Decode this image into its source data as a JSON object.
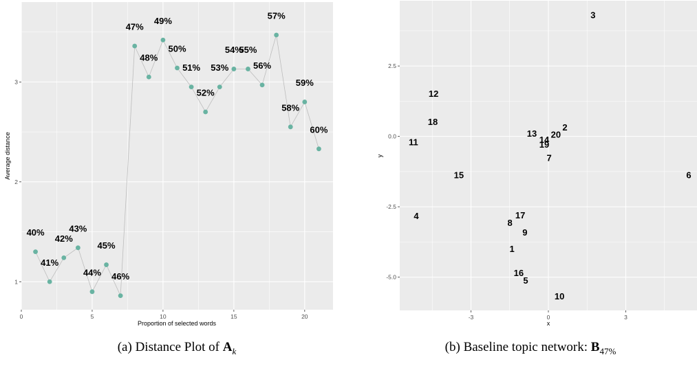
{
  "figure": {
    "caption_a": {
      "prefix": "(a) Distance Plot of ",
      "symbol": "A",
      "subscript": "k"
    },
    "caption_b": {
      "prefix": "(b) Baseline topic network: ",
      "symbol": "B",
      "subscript": "47%"
    }
  },
  "chart_data": [
    {
      "type": "line",
      "xlabel": "Proportion of selected words",
      "ylabel": "Average distance",
      "xlim": [
        0,
        22
      ],
      "ylim": [
        0.72,
        3.8
      ],
      "x_ticks": [
        0,
        5,
        10,
        15,
        20
      ],
      "x_tick_labels": [
        "0",
        "5",
        "10",
        "15",
        "20"
      ],
      "y_ticks": [
        1,
        2,
        3
      ],
      "y_tick_labels": [
        "1",
        "2",
        "3"
      ],
      "grid": true,
      "panel_color": "#EBEBEB",
      "marker_color": "#69B3A2",
      "line_color": "#BDBDBD",
      "x": [
        1,
        2,
        3,
        4,
        5,
        6,
        7,
        8,
        9,
        10,
        11,
        12,
        13,
        14,
        15,
        16,
        17,
        18,
        19,
        20,
        21
      ],
      "y": [
        1.3,
        1.0,
        1.24,
        1.34,
        0.9,
        1.17,
        0.86,
        3.36,
        3.05,
        3.42,
        3.14,
        2.95,
        2.7,
        2.95,
        3.13,
        3.13,
        2.97,
        3.47,
        2.55,
        2.8,
        2.33
      ],
      "point_labels": [
        "40%",
        "41%",
        "42%",
        "43%",
        "44%",
        "45%",
        "46%",
        "47%",
        "48%",
        "49%",
        "50%",
        "51%",
        "52%",
        "53%",
        "54%",
        "55%",
        "56%",
        "57%",
        "58%",
        "59%",
        "60%"
      ]
    },
    {
      "type": "scatter",
      "xlabel": "x",
      "ylabel": "y",
      "xlim": [
        -5.76,
        5.76
      ],
      "ylim": [
        -6.18,
        4.82
      ],
      "x_ticks": [
        -3,
        0,
        3
      ],
      "x_tick_labels": [
        "-3",
        "0",
        "3"
      ],
      "y_ticks": [
        2.5,
        0,
        -2.5,
        -5
      ],
      "y_tick_labels": [
        "2.5",
        "0.0",
        "-2.5",
        "-5.0"
      ],
      "grid": true,
      "panel_color": "#EBEBEB",
      "points": [
        {
          "label": "1",
          "x": -1.41,
          "y": -4.0
        },
        {
          "label": "2",
          "x": 0.64,
          "y": 0.32
        },
        {
          "label": "3",
          "x": 1.73,
          "y": 4.31
        },
        {
          "label": "4",
          "x": -5.12,
          "y": -2.83
        },
        {
          "label": "5",
          "x": -0.88,
          "y": -5.12
        },
        {
          "label": "6",
          "x": 5.44,
          "y": -1.37
        },
        {
          "label": "7",
          "x": 0.03,
          "y": -0.76
        },
        {
          "label": "8",
          "x": -1.49,
          "y": -3.07
        },
        {
          "label": "9",
          "x": -0.91,
          "y": -3.41
        },
        {
          "label": "10",
          "x": 0.43,
          "y": -5.68
        },
        {
          "label": "11",
          "x": -5.23,
          "y": -0.2
        },
        {
          "label": "12",
          "x": -4.45,
          "y": 1.51
        },
        {
          "label": "13",
          "x": -0.64,
          "y": 0.1
        },
        {
          "label": "14",
          "x": -0.16,
          "y": -0.12
        },
        {
          "label": "15",
          "x": -3.47,
          "y": -1.37
        },
        {
          "label": "16",
          "x": -1.15,
          "y": -4.85
        },
        {
          "label": "17",
          "x": -1.09,
          "y": -2.8
        },
        {
          "label": "18",
          "x": -4.48,
          "y": 0.51
        },
        {
          "label": "19",
          "x": -0.16,
          "y": -0.29
        },
        {
          "label": "20",
          "x": 0.29,
          "y": 0.07
        }
      ]
    }
  ]
}
